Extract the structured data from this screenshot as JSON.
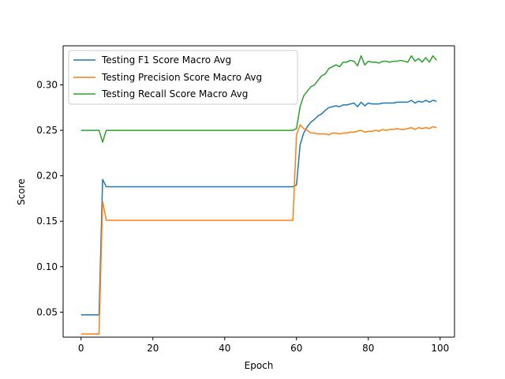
{
  "chart_data": {
    "type": "line",
    "title": "",
    "xlabel": "Epoch",
    "ylabel": "Score",
    "xlim": [
      -5,
      104
    ],
    "ylim": [
      0.0225,
      0.343
    ],
    "xticks": [
      0,
      20,
      40,
      60,
      80,
      100
    ],
    "yticks": [
      0.05,
      0.1,
      0.15,
      0.2,
      0.25,
      0.3
    ],
    "ytick_labels": [
      "0.05",
      "0.10",
      "0.15",
      "0.20",
      "0.25",
      "0.30"
    ],
    "grid": false,
    "legend_position": "top-left",
    "x": [
      0,
      1,
      2,
      3,
      4,
      5,
      6,
      7,
      8,
      9,
      10,
      11,
      12,
      13,
      14,
      15,
      16,
      17,
      18,
      19,
      20,
      21,
      22,
      23,
      24,
      25,
      26,
      27,
      28,
      29,
      30,
      31,
      32,
      33,
      34,
      35,
      36,
      37,
      38,
      39,
      40,
      41,
      42,
      43,
      44,
      45,
      46,
      47,
      48,
      49,
      50,
      51,
      52,
      53,
      54,
      55,
      56,
      57,
      58,
      59,
      60,
      61,
      62,
      63,
      64,
      65,
      66,
      67,
      68,
      69,
      70,
      71,
      72,
      73,
      74,
      75,
      76,
      77,
      78,
      79,
      80,
      81,
      82,
      83,
      84,
      85,
      86,
      87,
      88,
      89,
      90,
      91,
      92,
      93,
      94,
      95,
      96,
      97,
      98,
      99
    ],
    "series": [
      {
        "name": "Testing F1 Score Macro Avg",
        "color": "#1f77b4",
        "values": [
          0.047,
          0.047,
          0.047,
          0.047,
          0.047,
          0.047,
          0.196,
          0.188,
          0.188,
          0.188,
          0.188,
          0.188,
          0.188,
          0.188,
          0.188,
          0.188,
          0.188,
          0.188,
          0.188,
          0.188,
          0.188,
          0.188,
          0.188,
          0.188,
          0.188,
          0.188,
          0.188,
          0.188,
          0.188,
          0.188,
          0.188,
          0.188,
          0.188,
          0.188,
          0.188,
          0.188,
          0.188,
          0.188,
          0.188,
          0.188,
          0.188,
          0.188,
          0.188,
          0.188,
          0.188,
          0.188,
          0.188,
          0.188,
          0.188,
          0.188,
          0.188,
          0.188,
          0.188,
          0.188,
          0.188,
          0.188,
          0.188,
          0.188,
          0.188,
          0.188,
          0.19,
          0.234,
          0.247,
          0.254,
          0.259,
          0.262,
          0.266,
          0.268,
          0.272,
          0.275,
          0.276,
          0.277,
          0.276,
          0.278,
          0.278,
          0.279,
          0.28,
          0.276,
          0.281,
          0.277,
          0.28,
          0.279,
          0.279,
          0.279,
          0.28,
          0.28,
          0.28,
          0.28,
          0.281,
          0.281,
          0.281,
          0.281,
          0.283,
          0.28,
          0.282,
          0.281,
          0.283,
          0.281,
          0.283,
          0.282
        ]
      },
      {
        "name": "Testing Precision Score Macro Avg",
        "color": "#ff7f0e",
        "values": [
          0.026,
          0.026,
          0.026,
          0.026,
          0.026,
          0.026,
          0.172,
          0.151,
          0.151,
          0.151,
          0.151,
          0.151,
          0.151,
          0.151,
          0.151,
          0.151,
          0.151,
          0.151,
          0.151,
          0.151,
          0.151,
          0.151,
          0.151,
          0.151,
          0.151,
          0.151,
          0.151,
          0.151,
          0.151,
          0.151,
          0.151,
          0.151,
          0.151,
          0.151,
          0.151,
          0.151,
          0.151,
          0.151,
          0.151,
          0.151,
          0.151,
          0.151,
          0.151,
          0.151,
          0.151,
          0.151,
          0.151,
          0.151,
          0.151,
          0.151,
          0.151,
          0.151,
          0.151,
          0.151,
          0.151,
          0.151,
          0.151,
          0.151,
          0.151,
          0.151,
          0.245,
          0.256,
          0.252,
          0.25,
          0.247,
          0.247,
          0.246,
          0.246,
          0.246,
          0.245,
          0.247,
          0.247,
          0.246,
          0.247,
          0.247,
          0.248,
          0.248,
          0.249,
          0.25,
          0.248,
          0.249,
          0.249,
          0.25,
          0.249,
          0.251,
          0.25,
          0.251,
          0.251,
          0.252,
          0.251,
          0.251,
          0.252,
          0.253,
          0.251,
          0.253,
          0.252,
          0.253,
          0.252,
          0.254,
          0.253
        ]
      },
      {
        "name": "Testing Recall Score Macro Avg",
        "color": "#2ca02c",
        "values": [
          0.25,
          0.25,
          0.25,
          0.25,
          0.25,
          0.25,
          0.237,
          0.25,
          0.25,
          0.25,
          0.25,
          0.25,
          0.25,
          0.25,
          0.25,
          0.25,
          0.25,
          0.25,
          0.25,
          0.25,
          0.25,
          0.25,
          0.25,
          0.25,
          0.25,
          0.25,
          0.25,
          0.25,
          0.25,
          0.25,
          0.25,
          0.25,
          0.25,
          0.25,
          0.25,
          0.25,
          0.25,
          0.25,
          0.25,
          0.25,
          0.25,
          0.25,
          0.25,
          0.25,
          0.25,
          0.25,
          0.25,
          0.25,
          0.25,
          0.25,
          0.25,
          0.25,
          0.25,
          0.25,
          0.25,
          0.25,
          0.25,
          0.25,
          0.25,
          0.25,
          0.252,
          0.276,
          0.288,
          0.293,
          0.298,
          0.3,
          0.305,
          0.31,
          0.312,
          0.318,
          0.32,
          0.322,
          0.32,
          0.325,
          0.325,
          0.327,
          0.326,
          0.321,
          0.332,
          0.322,
          0.326,
          0.325,
          0.325,
          0.324,
          0.326,
          0.326,
          0.325,
          0.326,
          0.326,
          0.327,
          0.326,
          0.325,
          0.332,
          0.326,
          0.329,
          0.325,
          0.33,
          0.325,
          0.332,
          0.327
        ]
      }
    ]
  }
}
